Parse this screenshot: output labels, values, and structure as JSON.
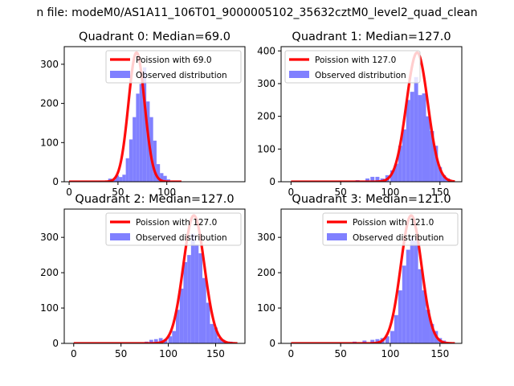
{
  "figure": {
    "suptitle": "n file: modeM0/AS1A11_106T01_9000005102_35632cztM0_level2_quad_clean"
  },
  "colors": {
    "line": "#ff0000",
    "bars": "#8080ff",
    "axes": "#000000"
  },
  "chart_data": [
    {
      "type": "bar",
      "title": "Quadrant 0: Median=69.0",
      "legend": {
        "placement": "top-right",
        "line_label": "Poission with 69.0",
        "bar_label": "Observed distribution"
      },
      "xlim": [
        -5,
        180
      ],
      "ylim": [
        0,
        345
      ],
      "xticks": [
        0,
        50,
        100
      ],
      "yticks": [
        0,
        100,
        200,
        300
      ],
      "bin_width": 3.5,
      "bins": [
        [
          0,
          1
        ],
        [
          10,
          1
        ],
        [
          20,
          1
        ],
        [
          30,
          2
        ],
        [
          40,
          8
        ],
        [
          45,
          5
        ],
        [
          47.5,
          16
        ],
        [
          51,
          12
        ],
        [
          54.5,
          18
        ],
        [
          58,
          60
        ],
        [
          61.5,
          108
        ],
        [
          65,
          165
        ],
        [
          68.5,
          225
        ],
        [
          72,
          250
        ],
        [
          75.5,
          292
        ],
        [
          79,
          205
        ],
        [
          82.5,
          165
        ],
        [
          86,
          105
        ],
        [
          89.5,
          45
        ],
        [
          93,
          22
        ],
        [
          96.5,
          15
        ],
        [
          100,
          6
        ],
        [
          105,
          2
        ]
      ],
      "poisson_mean": 69,
      "poisson_scale": 330,
      "poisson_sigma": 8.3,
      "curve_x": [
        0,
        115
      ]
    },
    {
      "type": "bar",
      "title": "Quadrant 1: Median=127.0",
      "legend": {
        "placement": "top-left",
        "line_label": "Poission with 127.0",
        "bar_label": "Observed distribution"
      },
      "xlim": [
        -10,
        172
      ],
      "ylim": [
        0,
        413
      ],
      "xticks": [
        0,
        50,
        100,
        150
      ],
      "yticks": [
        0,
        100,
        200,
        300,
        400
      ],
      "bin_width": 4,
      "bins": [
        [
          65,
          5
        ],
        [
          75,
          10
        ],
        [
          80,
          15
        ],
        [
          85,
          15
        ],
        [
          90,
          10
        ],
        [
          95,
          20
        ],
        [
          100,
          35
        ],
        [
          104,
          55
        ],
        [
          108,
          110
        ],
        [
          112,
          160
        ],
        [
          116,
          250
        ],
        [
          120,
          275
        ],
        [
          124,
          320
        ],
        [
          128,
          265
        ],
        [
          132,
          270
        ],
        [
          136,
          200
        ],
        [
          140,
          155
        ],
        [
          144,
          110
        ],
        [
          148,
          45
        ],
        [
          152,
          20
        ],
        [
          156,
          10
        ]
      ],
      "poisson_mean": 127,
      "poisson_scale": 395,
      "poisson_sigma": 10.8,
      "curve_x": [
        0,
        165
      ]
    },
    {
      "type": "bar",
      "title": "Quadrant 2: Median=127.0",
      "legend": {
        "placement": "top-right",
        "line_label": "Poission with 127.0",
        "bar_label": "Observed distribution"
      },
      "xlim": [
        -10,
        181
      ],
      "ylim": [
        0,
        380
      ],
      "xticks": [
        0,
        50,
        100,
        150
      ],
      "yticks": [
        0,
        100,
        200,
        300
      ],
      "bin_width": 4,
      "bins": [
        [
          75,
          5
        ],
        [
          80,
          10
        ],
        [
          85,
          12
        ],
        [
          90,
          15
        ],
        [
          95,
          12
        ],
        [
          100,
          20
        ],
        [
          104,
          35
        ],
        [
          108,
          95
        ],
        [
          112,
          155
        ],
        [
          116,
          230
        ],
        [
          120,
          250
        ],
        [
          124,
          310
        ],
        [
          128,
          280
        ],
        [
          132,
          255
        ],
        [
          136,
          185
        ],
        [
          140,
          115
        ],
        [
          144,
          55
        ],
        [
          148,
          45
        ],
        [
          152,
          15
        ],
        [
          156,
          10
        ],
        [
          164,
          5
        ]
      ],
      "poisson_mean": 127,
      "poisson_scale": 362,
      "poisson_sigma": 11.2,
      "curve_x": [
        0,
        173
      ]
    },
    {
      "type": "bar",
      "title": "Quadrant 3: Median=121.0",
      "legend": {
        "placement": "top-right",
        "line_label": "Poission with 121.0",
        "bar_label": "Observed distribution"
      },
      "xlim": [
        -10,
        172
      ],
      "ylim": [
        0,
        380
      ],
      "xticks": [
        0,
        50,
        100,
        150
      ],
      "yticks": [
        0,
        100,
        200,
        300
      ],
      "bin_width": 4,
      "bins": [
        [
          62,
          5
        ],
        [
          72,
          8
        ],
        [
          80,
          10
        ],
        [
          85,
          12
        ],
        [
          90,
          15
        ],
        [
          95,
          20
        ],
        [
          100,
          35
        ],
        [
          104,
          80
        ],
        [
          108,
          150
        ],
        [
          112,
          220
        ],
        [
          116,
          265
        ],
        [
          120,
          300
        ],
        [
          124,
          290
        ],
        [
          128,
          210
        ],
        [
          132,
          150
        ],
        [
          136,
          95
        ],
        [
          140,
          55
        ],
        [
          144,
          35
        ],
        [
          148,
          15
        ],
        [
          152,
          8
        ]
      ],
      "poisson_mean": 121,
      "poisson_scale": 362,
      "poisson_sigma": 10.5,
      "curve_x": [
        0,
        165
      ]
    }
  ]
}
